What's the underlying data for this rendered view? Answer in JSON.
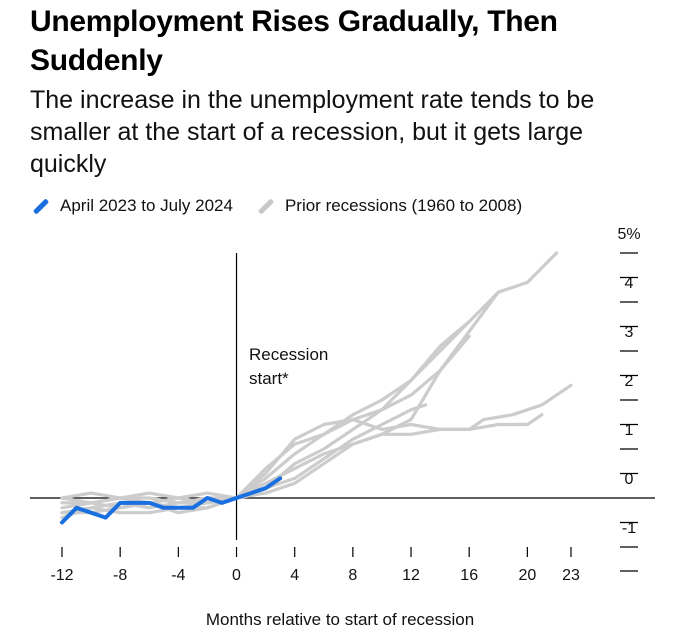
{
  "title": "Unemployment Rises Gradually, Then Suddenly",
  "subtitle": "The increase in the unemployment rate tends to be smaller at the start of a recession, but it gets large quickly",
  "legend": [
    {
      "label": "April 2023 to July 2024",
      "color": "#1a6fe0"
    },
    {
      "label": "Prior recessions (1960 to 2008)",
      "color": "#c8c8c8"
    }
  ],
  "annotation": [
    "Recession",
    "start*"
  ],
  "chart_data": {
    "type": "line",
    "xlabel": "Months relative to start of recession",
    "ylabel": "",
    "x_ticks": [
      "-12",
      "-8",
      "-4",
      "0",
      "4",
      "8",
      "12",
      "16",
      "20",
      "23"
    ],
    "y_ticks": [
      "5%",
      "4",
      "3",
      "2",
      "1",
      "0",
      "-1"
    ],
    "xlim": [
      -12,
      23
    ],
    "ylim": [
      -1,
      5
    ],
    "series": [
      {
        "name": "April 2023 to July 2024",
        "color": "#1a6fe0",
        "points": [
          [
            -12,
            -0.5
          ],
          [
            -11,
            -0.2
          ],
          [
            -10,
            -0.3
          ],
          [
            -9,
            -0.4
          ],
          [
            -8,
            -0.1
          ],
          [
            -7,
            -0.1
          ],
          [
            -6,
            -0.1
          ],
          [
            -5,
            -0.2
          ],
          [
            -4,
            -0.2
          ],
          [
            -3,
            -0.2
          ],
          [
            -2,
            0.0
          ],
          [
            -1,
            -0.1
          ],
          [
            0,
            0.0
          ],
          [
            1,
            0.1
          ],
          [
            2,
            0.2
          ],
          [
            3,
            0.4
          ]
        ]
      },
      {
        "name": "Prior recessions (1960 to 2008)",
        "color": "#cccccc",
        "points": [
          [
            -12,
            -0.3
          ],
          [
            -10,
            -0.2
          ],
          [
            -8,
            -0.1
          ],
          [
            -6,
            -0.2
          ],
          [
            -4,
            -0.1
          ],
          [
            -2,
            -0.1
          ],
          [
            0,
            0.0
          ],
          [
            2,
            0.5
          ],
          [
            4,
            1.2
          ],
          [
            6,
            1.5
          ],
          [
            8,
            1.6
          ],
          [
            10,
            1.4
          ],
          [
            12,
            1.5
          ],
          [
            14,
            1.4
          ],
          [
            16,
            1.4
          ],
          [
            18,
            1.5
          ],
          [
            20,
            1.5
          ],
          [
            21,
            1.7
          ]
        ]
      },
      {
        "name": "Prior recessions (1960 to 2008)",
        "color": "#cccccc",
        "points": [
          [
            -12,
            0.0
          ],
          [
            -10,
            0.1
          ],
          [
            -8,
            0.0
          ],
          [
            -6,
            0.1
          ],
          [
            -4,
            0.0
          ],
          [
            -2,
            0.1
          ],
          [
            0,
            0.0
          ],
          [
            2,
            0.3
          ],
          [
            4,
            0.6
          ],
          [
            6,
            0.9
          ],
          [
            8,
            1.1
          ],
          [
            10,
            1.3
          ],
          [
            12,
            1.3
          ],
          [
            14,
            1.4
          ],
          [
            16,
            1.4
          ],
          [
            17,
            1.6
          ],
          [
            19,
            1.7
          ],
          [
            21,
            1.9
          ],
          [
            23,
            2.3
          ]
        ]
      },
      {
        "name": "Prior recessions (1960 to 2008)",
        "color": "#cccccc",
        "points": [
          [
            -12,
            -0.2
          ],
          [
            -10,
            -0.1
          ],
          [
            -8,
            -0.2
          ],
          [
            -6,
            -0.1
          ],
          [
            -4,
            -0.2
          ],
          [
            -2,
            -0.1
          ],
          [
            0,
            0.0
          ],
          [
            2,
            0.1
          ],
          [
            4,
            0.3
          ],
          [
            6,
            0.7
          ],
          [
            8,
            1.1
          ],
          [
            10,
            1.3
          ],
          [
            12,
            1.6
          ],
          [
            14,
            2.6
          ],
          [
            16,
            3.4
          ],
          [
            18,
            4.2
          ],
          [
            20,
            4.4
          ],
          [
            22,
            5.0
          ]
        ]
      },
      {
        "name": "Prior recessions (1960 to 2008)",
        "color": "#cccccc",
        "points": [
          [
            -12,
            -0.1
          ],
          [
            -10,
            -0.1
          ],
          [
            -8,
            0.0
          ],
          [
            -6,
            0.0
          ],
          [
            -4,
            -0.1
          ],
          [
            -2,
            0.0
          ],
          [
            0,
            0.0
          ],
          [
            2,
            0.4
          ],
          [
            4,
            0.9
          ],
          [
            6,
            1.3
          ],
          [
            8,
            1.7
          ],
          [
            10,
            2.0
          ],
          [
            12,
            2.4
          ],
          [
            14,
            3.0
          ],
          [
            16,
            3.6
          ],
          [
            18,
            4.2
          ]
        ]
      },
      {
        "name": "Prior recessions (1960 to 2008)",
        "color": "#cccccc",
        "points": [
          [
            -12,
            -0.4
          ],
          [
            -10,
            -0.2
          ],
          [
            -8,
            -0.3
          ],
          [
            -6,
            -0.3
          ],
          [
            -4,
            -0.2
          ],
          [
            -2,
            -0.2
          ],
          [
            0,
            0.0
          ],
          [
            2,
            0.2
          ],
          [
            4,
            0.7
          ],
          [
            6,
            1.0
          ],
          [
            8,
            1.4
          ],
          [
            10,
            1.8
          ],
          [
            12,
            2.4
          ],
          [
            14,
            3.1
          ],
          [
            16,
            3.6
          ]
        ]
      },
      {
        "name": "Prior recessions (1960 to 2008)",
        "color": "#cccccc",
        "points": [
          [
            -12,
            0.0
          ],
          [
            -10,
            -0.1
          ],
          [
            -8,
            0.0
          ],
          [
            -6,
            -0.1
          ],
          [
            -4,
            0.0
          ],
          [
            -2,
            -0.1
          ],
          [
            0,
            0.0
          ],
          [
            2,
            0.6
          ],
          [
            4,
            1.1
          ],
          [
            6,
            1.3
          ],
          [
            8,
            1.6
          ],
          [
            10,
            1.8
          ],
          [
            12,
            2.1
          ],
          [
            14,
            2.6
          ],
          [
            16,
            3.3
          ]
        ]
      },
      {
        "name": "Prior recessions (1960 to 2008)",
        "color": "#cccccc",
        "points": [
          [
            -12,
            -0.3
          ],
          [
            -10,
            -0.3
          ],
          [
            -8,
            -0.2
          ],
          [
            -6,
            -0.1
          ],
          [
            -4,
            -0.3
          ],
          [
            -2,
            -0.2
          ],
          [
            0,
            0.0
          ],
          [
            2,
            0.2
          ],
          [
            4,
            0.4
          ],
          [
            6,
            0.8
          ],
          [
            8,
            1.2
          ],
          [
            10,
            1.5
          ],
          [
            12,
            1.8
          ],
          [
            13,
            1.9
          ]
        ]
      }
    ]
  }
}
